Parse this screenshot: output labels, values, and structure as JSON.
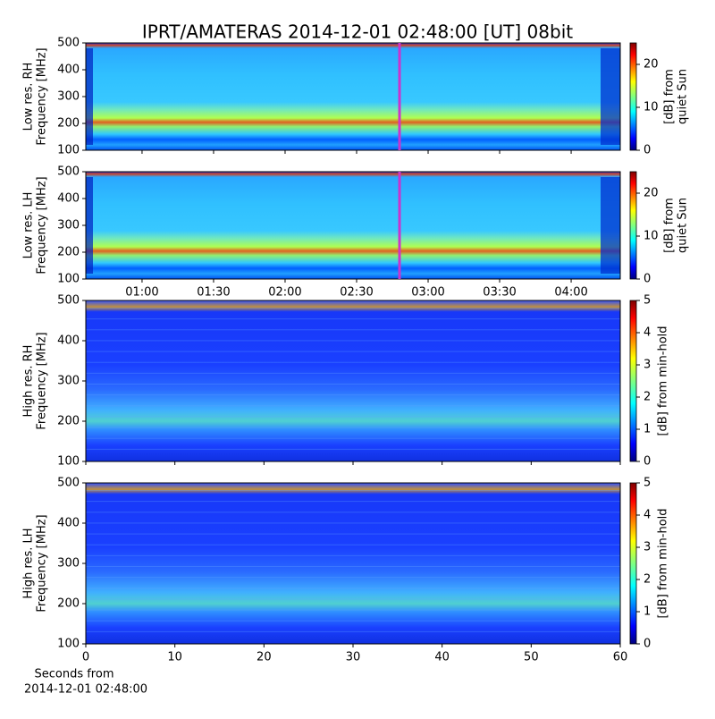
{
  "chart_data": [
    {
      "type": "heatmap",
      "title": "IPRT/AMATERAS 2014-12-01 02:48:00 [UT]   08bit",
      "ylabel": [
        "Low res. RH",
        "Frequency [MHz]"
      ],
      "ylim": [
        100,
        500
      ],
      "yticks": [
        100,
        200,
        300,
        400,
        500
      ],
      "xlim": [
        36.4,
        260.6
      ],
      "vline": 168,
      "vline_color": "#cc33cc",
      "colorbar": {
        "label": [
          "[dB] from",
          "quiet Sun"
        ],
        "lim": [
          0,
          25
        ],
        "ticks": [
          0,
          10,
          20
        ],
        "cmap": "jet"
      }
    },
    {
      "type": "heatmap",
      "ylabel": [
        "Low res. LH",
        "Frequency [MHz]"
      ],
      "ylim": [
        100,
        500
      ],
      "yticks": [
        100,
        200,
        300,
        400,
        500
      ],
      "xlim": [
        36.4,
        260.6
      ],
      "xticks": [
        {
          "value": 60,
          "label": "01:00"
        },
        {
          "value": 90,
          "label": "01:30"
        },
        {
          "value": 120,
          "label": "02:00"
        },
        {
          "value": 150,
          "label": "02:30"
        },
        {
          "value": 180,
          "label": "03:00"
        },
        {
          "value": 210,
          "label": "03:30"
        },
        {
          "value": 240,
          "label": "04:00"
        }
      ],
      "vline": 168,
      "vline_color": "#cc33cc",
      "colorbar": {
        "label": [
          "[dB] from",
          "quiet Sun"
        ],
        "lim": [
          0,
          25
        ],
        "ticks": [
          0,
          10,
          20
        ],
        "cmap": "jet"
      }
    },
    {
      "type": "heatmap",
      "ylabel": [
        "High res. RH",
        "Frequency [MHz]"
      ],
      "ylim": [
        100,
        500
      ],
      "yticks": [
        100,
        200,
        300,
        400,
        500
      ],
      "xlim": [
        0,
        60
      ],
      "colorbar": {
        "label": [
          "[dB] from min-hold"
        ],
        "lim": [
          0,
          5
        ],
        "ticks": [
          0,
          1,
          2,
          3,
          4,
          5
        ],
        "cmap": "jet"
      }
    },
    {
      "type": "heatmap",
      "ylabel": [
        "High res. LH",
        "Frequency [MHz]"
      ],
      "ylim": [
        100,
        500
      ],
      "yticks": [
        100,
        200,
        300,
        400,
        500
      ],
      "xlim": [
        0,
        60
      ],
      "xticks": [
        0,
        10,
        20,
        30,
        40,
        50,
        60
      ],
      "xlabel": [
        "Seconds from",
        "2014-12-01 02:48:00"
      ],
      "colorbar": {
        "label": [
          "[dB] from min-hold"
        ],
        "lim": [
          0,
          5
        ],
        "ticks": [
          0,
          1,
          2,
          3,
          4,
          5
        ],
        "cmap": "jet"
      }
    }
  ]
}
